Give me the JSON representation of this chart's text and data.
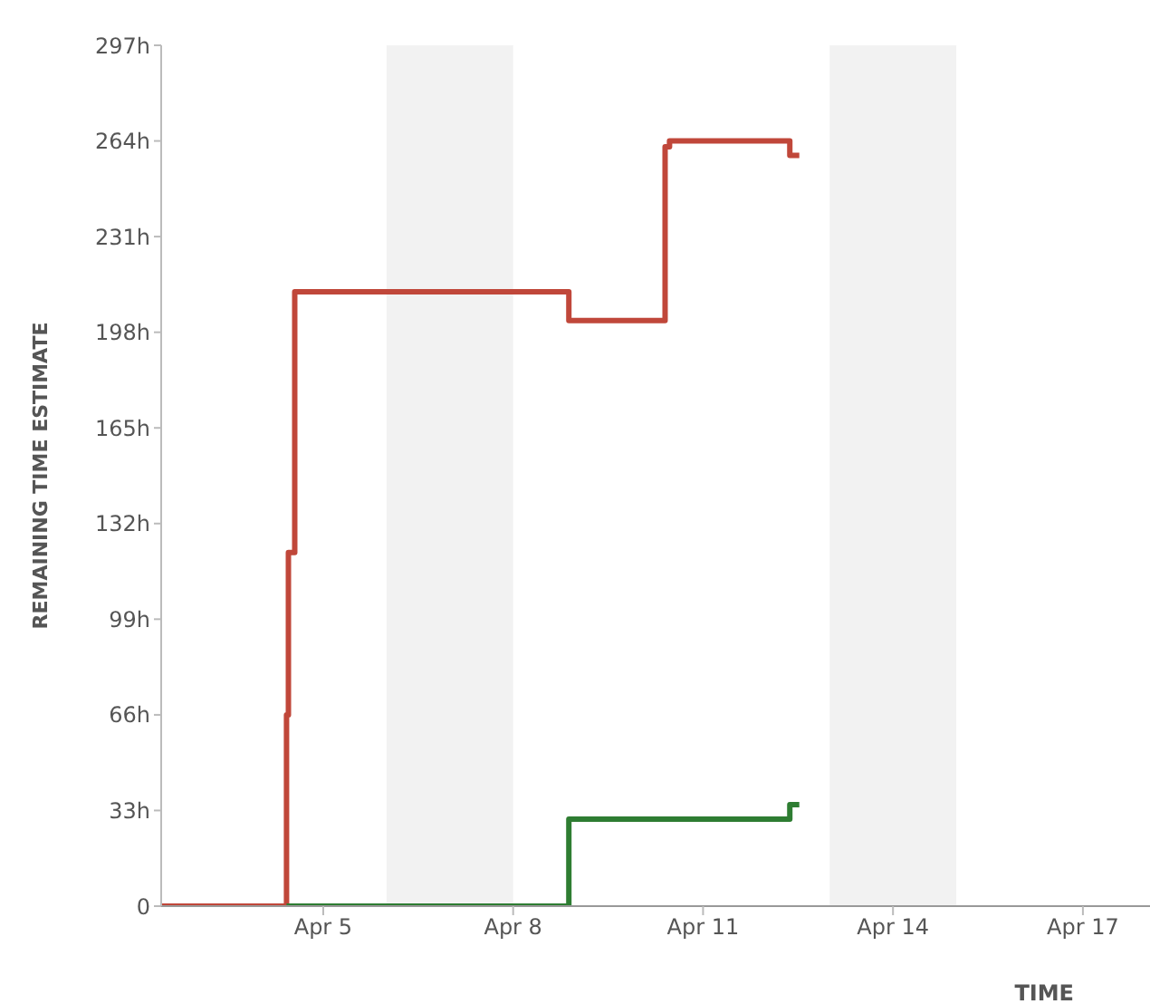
{
  "chart_data": {
    "type": "step",
    "xlabel": "TIME",
    "ylabel": "REMAINING TIME ESTIMATE",
    "series": [
      {
        "color": "#c0473a",
        "x": [
          "--04-02T10:34",
          "--04-04T10:05",
          "--04-04T10:48",
          "--04-04T13:12",
          "--04-08T21:07",
          "--04-10T09:36",
          "--04-10T11:17",
          "--04-12T08:53",
          "--04-12T12:29"
        ],
        "values": [
          0,
          66,
          122,
          212,
          202,
          262,
          264,
          259,
          259
        ]
      },
      {
        "color": "#2e7d32",
        "x": [
          "--04-04T10:05",
          "--04-08T21:07",
          "--04-12T08:53",
          "--04-12T12:29"
        ],
        "values": [
          0,
          30,
          35,
          35
        ]
      }
    ],
    "xlim": [
      "--04-02T10:34",
      "--04-18T01:26"
    ],
    "xticks": [
      {
        "value": "--04-05",
        "label": "Apr 5"
      },
      {
        "value": "--04-08",
        "label": "Apr 8"
      },
      {
        "value": "--04-11",
        "label": "Apr 11"
      },
      {
        "value": "--04-14",
        "label": "Apr 14"
      },
      {
        "value": "--04-17",
        "label": "Apr 17"
      }
    ],
    "ylim": [
      0,
      297
    ],
    "yticks": [
      0,
      {
        "value": 33,
        "label": "33h"
      },
      {
        "value": 66,
        "label": "66h"
      },
      {
        "value": 99,
        "label": "99h"
      },
      {
        "value": 132,
        "label": "132h"
      },
      {
        "value": 165,
        "label": "165h"
      },
      {
        "value": 198,
        "label": "198h"
      },
      {
        "value": 231,
        "label": "231h"
      },
      {
        "value": 264,
        "label": "264h"
      },
      {
        "value": 297,
        "label": "297h"
      }
    ],
    "bands": [
      {
        "axis": "x",
        "from": "--04-06",
        "to": "--04-08",
        "color": "#f2f2f2"
      },
      {
        "axis": "x",
        "from": "--04-13",
        "to": "--04-15",
        "color": "#f2f2f2"
      }
    ],
    "grid": false,
    "legend": false,
    "marker": "none",
    "line_style": "solid"
  }
}
